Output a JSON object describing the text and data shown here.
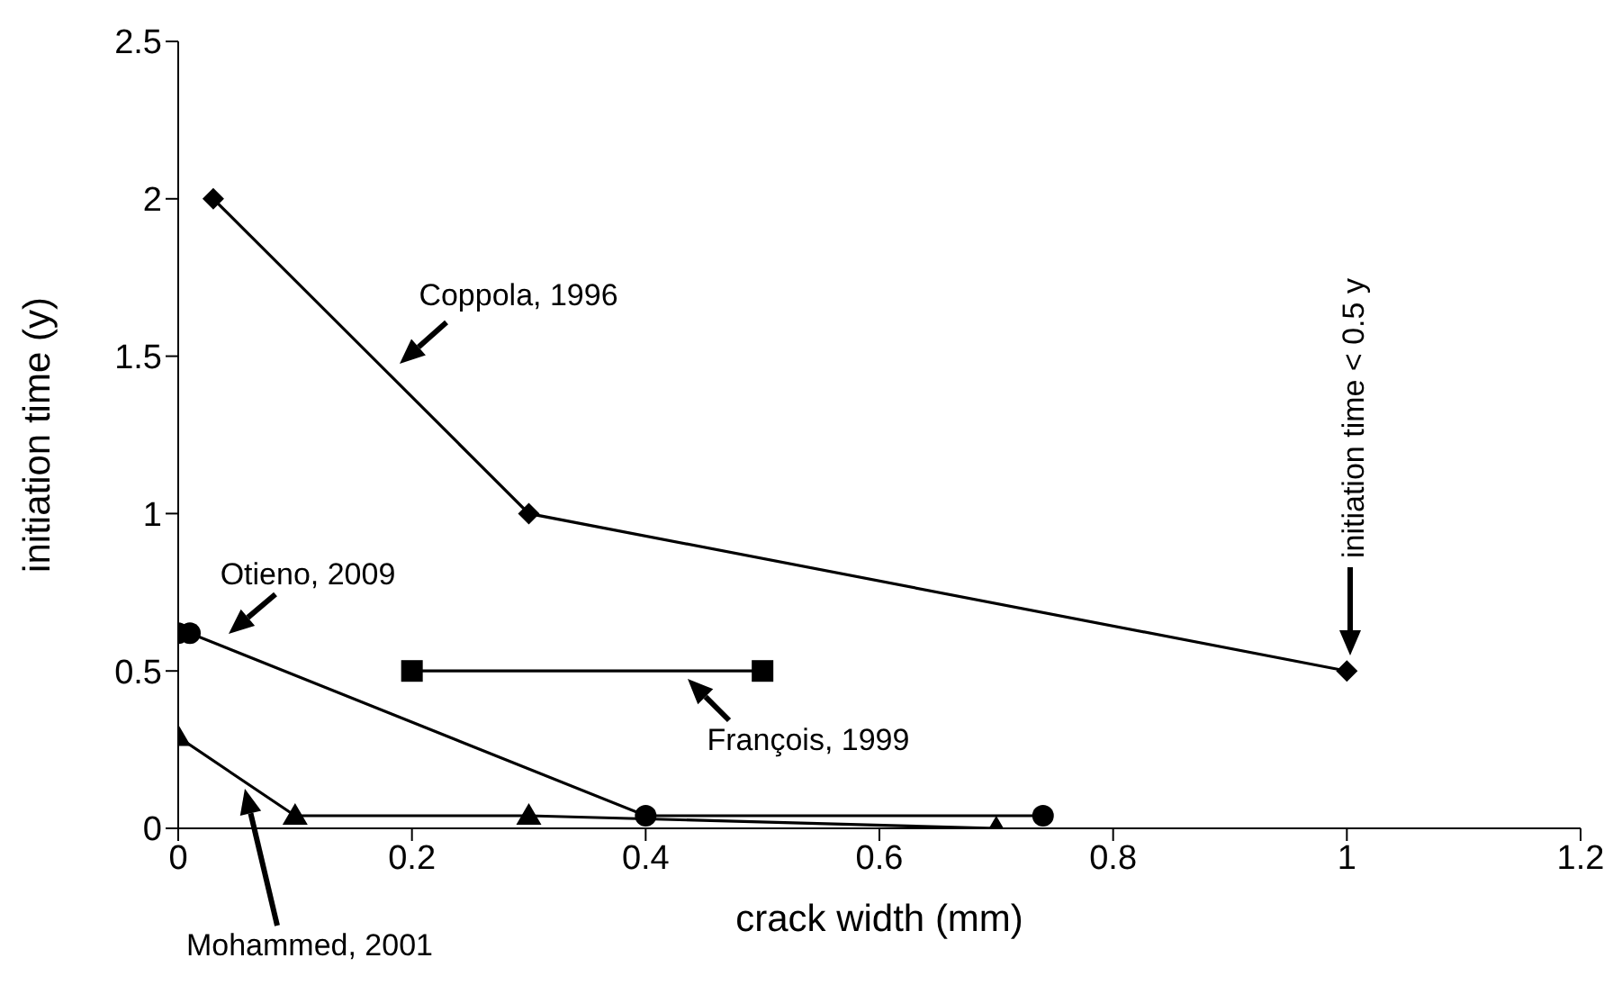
{
  "chart_data": {
    "type": "line",
    "xlabel": "crack width (mm)",
    "ylabel": "initiation time (y)",
    "xlim": [
      0,
      1.2
    ],
    "xticks": [
      0,
      0.2,
      0.4,
      0.6,
      0.8,
      1,
      1.2
    ],
    "ylim": [
      0,
      2.5
    ],
    "yticks": [
      0,
      0.5,
      1,
      1.5,
      2,
      2.5
    ],
    "grid": false,
    "legend": false,
    "series": [
      {
        "color": "#000000",
        "marker": "diamond",
        "x": [
          0.03,
          0.3,
          1
        ],
        "values": [
          2,
          1,
          0.5
        ]
      },
      {
        "color": "#000000",
        "marker": "square",
        "x": [
          0.2,
          0.5
        ],
        "values": [
          0.5,
          0.5
        ]
      },
      {
        "color": "#000000",
        "marker": "circle",
        "x": [
          0,
          0.01,
          0.4,
          0.74
        ],
        "values": [
          0.62,
          0.62,
          0.04,
          0.04
        ]
      },
      {
        "color": "#000000",
        "marker": "triangle",
        "x": [
          0,
          0.1,
          0.3,
          0.7
        ],
        "values": [
          0.29,
          0.04,
          0.04,
          0
        ]
      }
    ],
    "annotations": [
      "Coppola, 1996",
      "Otieno, 2009",
      "François, 1999",
      "Mohammed, 2001",
      "initiation time < 0.5 y"
    ]
  }
}
